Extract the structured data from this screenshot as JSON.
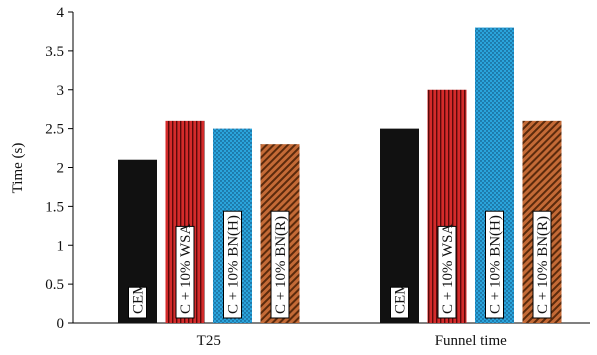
{
  "chart_data": {
    "type": "bar",
    "categories": [
      "T25",
      "Funnel time"
    ],
    "series": [
      {
        "name": "CEM",
        "values": [
          2.1,
          2.5
        ],
        "color": "#111111",
        "pattern": "solid"
      },
      {
        "name": "C + 10% WSA",
        "values": [
          2.6,
          3.0
        ],
        "color": "#d42b2b",
        "pattern": "vertical-stripes"
      },
      {
        "name": "C + 10% BN(H)",
        "values": [
          2.5,
          3.8
        ],
        "color": "#2aa4dc",
        "pattern": "dots"
      },
      {
        "name": "C + 10% BN(R)",
        "values": [
          2.3,
          2.6
        ],
        "color": "#b85a28",
        "pattern": "diagonal-hatch"
      }
    ],
    "title": "",
    "xlabel": "",
    "ylabel": "Time (s)",
    "ylim": [
      0,
      4
    ],
    "yticks": [
      "0",
      "0.5",
      "1",
      "1.5",
      "2",
      "2.5",
      "3",
      "3.5",
      "4"
    ],
    "grid": false,
    "legend": "labels inside bars"
  }
}
